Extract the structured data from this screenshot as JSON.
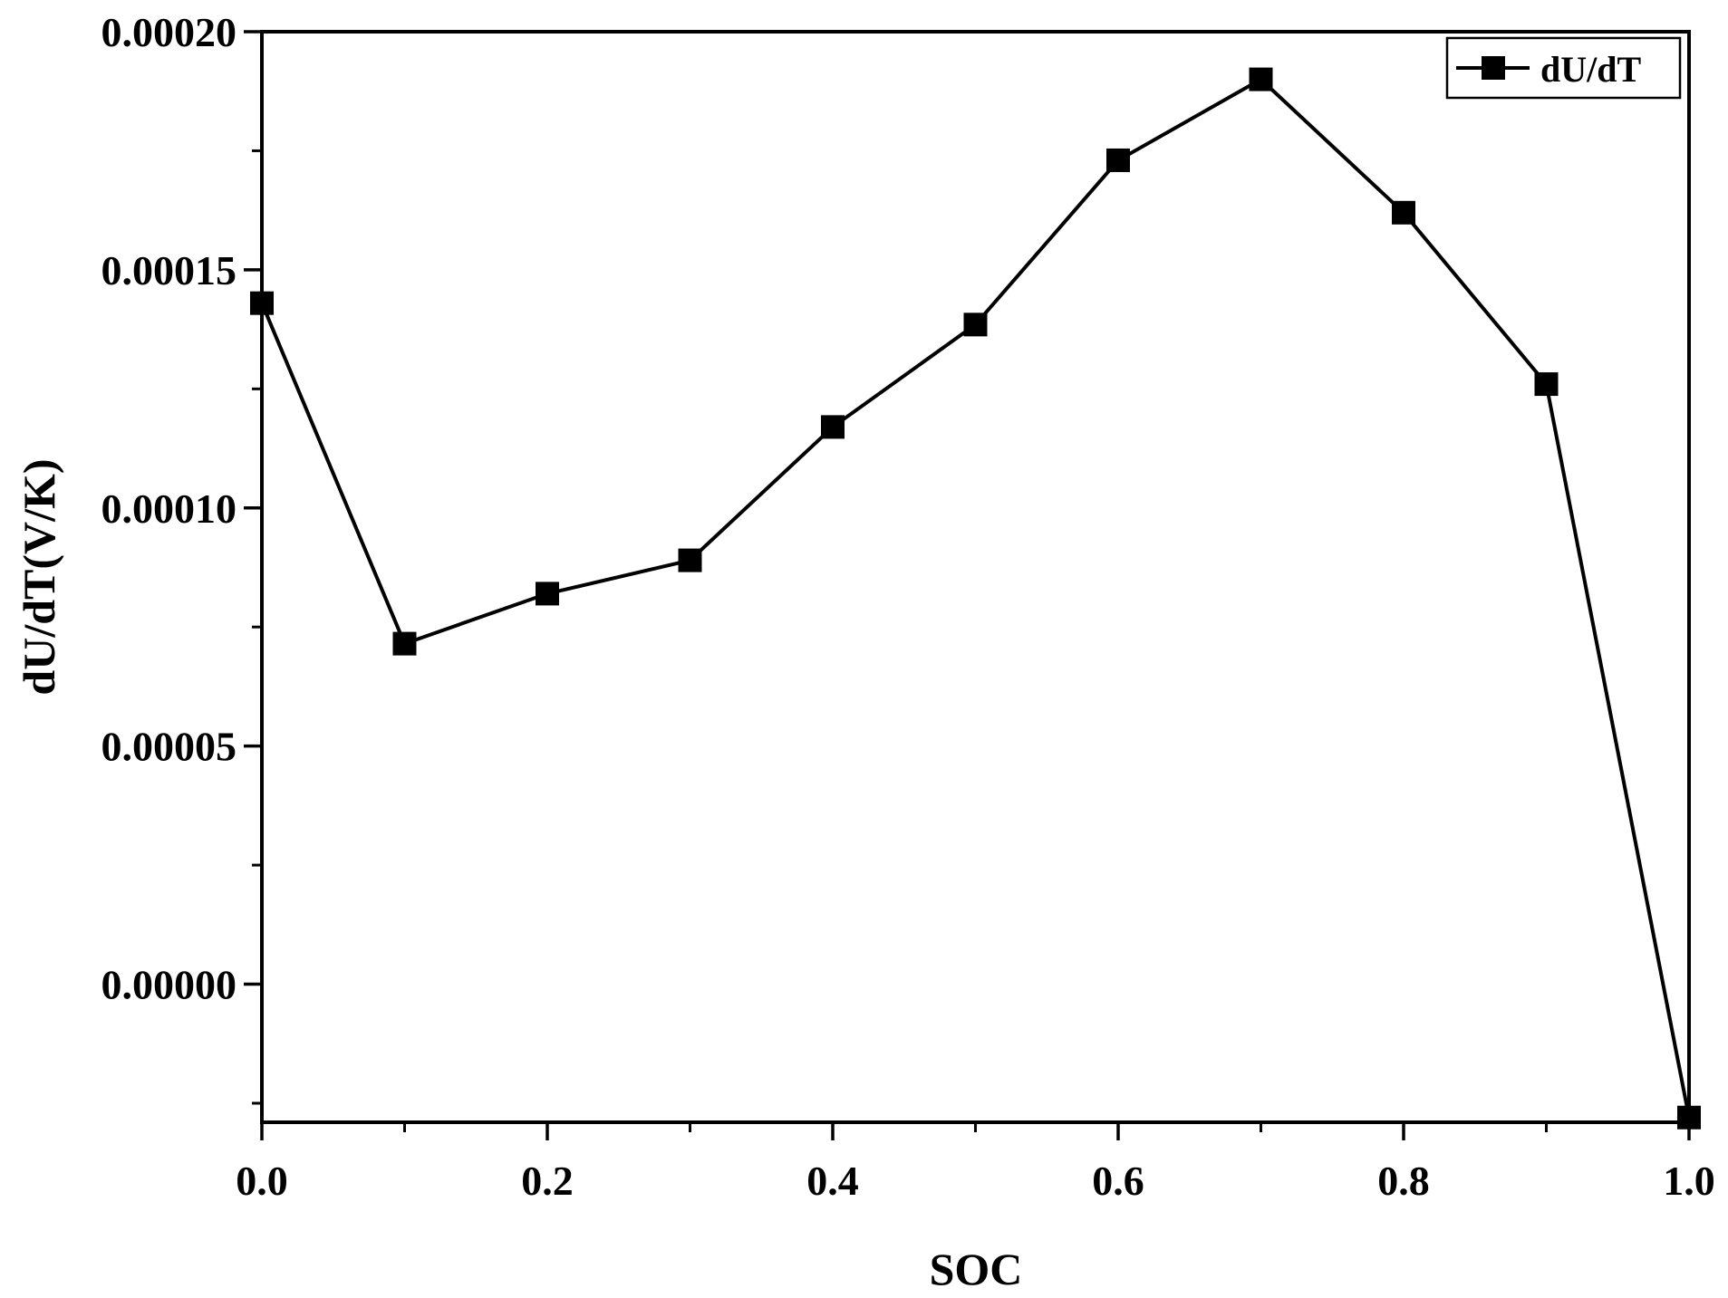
{
  "chart_data": {
    "type": "line",
    "xlabel": "SOC",
    "ylabel": "dU/dT(V/K)",
    "xlim": [
      0.0,
      1.0
    ],
    "ylim": [
      -2.9e-05,
      0.0002
    ],
    "x_ticks": [
      0.0,
      0.2,
      0.4,
      0.6,
      0.8,
      1.0
    ],
    "x_tick_labels": [
      "0.0",
      "0.2",
      "0.4",
      "0.6",
      "0.8",
      "1.0"
    ],
    "y_ticks": [
      0.0,
      5e-05,
      0.0001,
      0.00015,
      0.0002
    ],
    "y_tick_labels": [
      "0.00000",
      "0.00005",
      "0.00010",
      "0.00015",
      "0.00020"
    ],
    "grid": false,
    "legend_position": "top-right",
    "series": [
      {
        "name": "dU/dT",
        "color": "#000000",
        "marker": "square",
        "x": [
          0.0,
          0.1,
          0.2,
          0.3,
          0.4,
          0.5,
          0.6,
          0.7,
          0.8,
          0.9,
          1.0
        ],
        "y": [
          0.000143,
          7.15e-05,
          8.2e-05,
          8.9e-05,
          0.000117,
          0.0001385,
          0.000173,
          0.00019,
          0.000162,
          0.000126,
          -2.8e-05
        ]
      }
    ]
  }
}
